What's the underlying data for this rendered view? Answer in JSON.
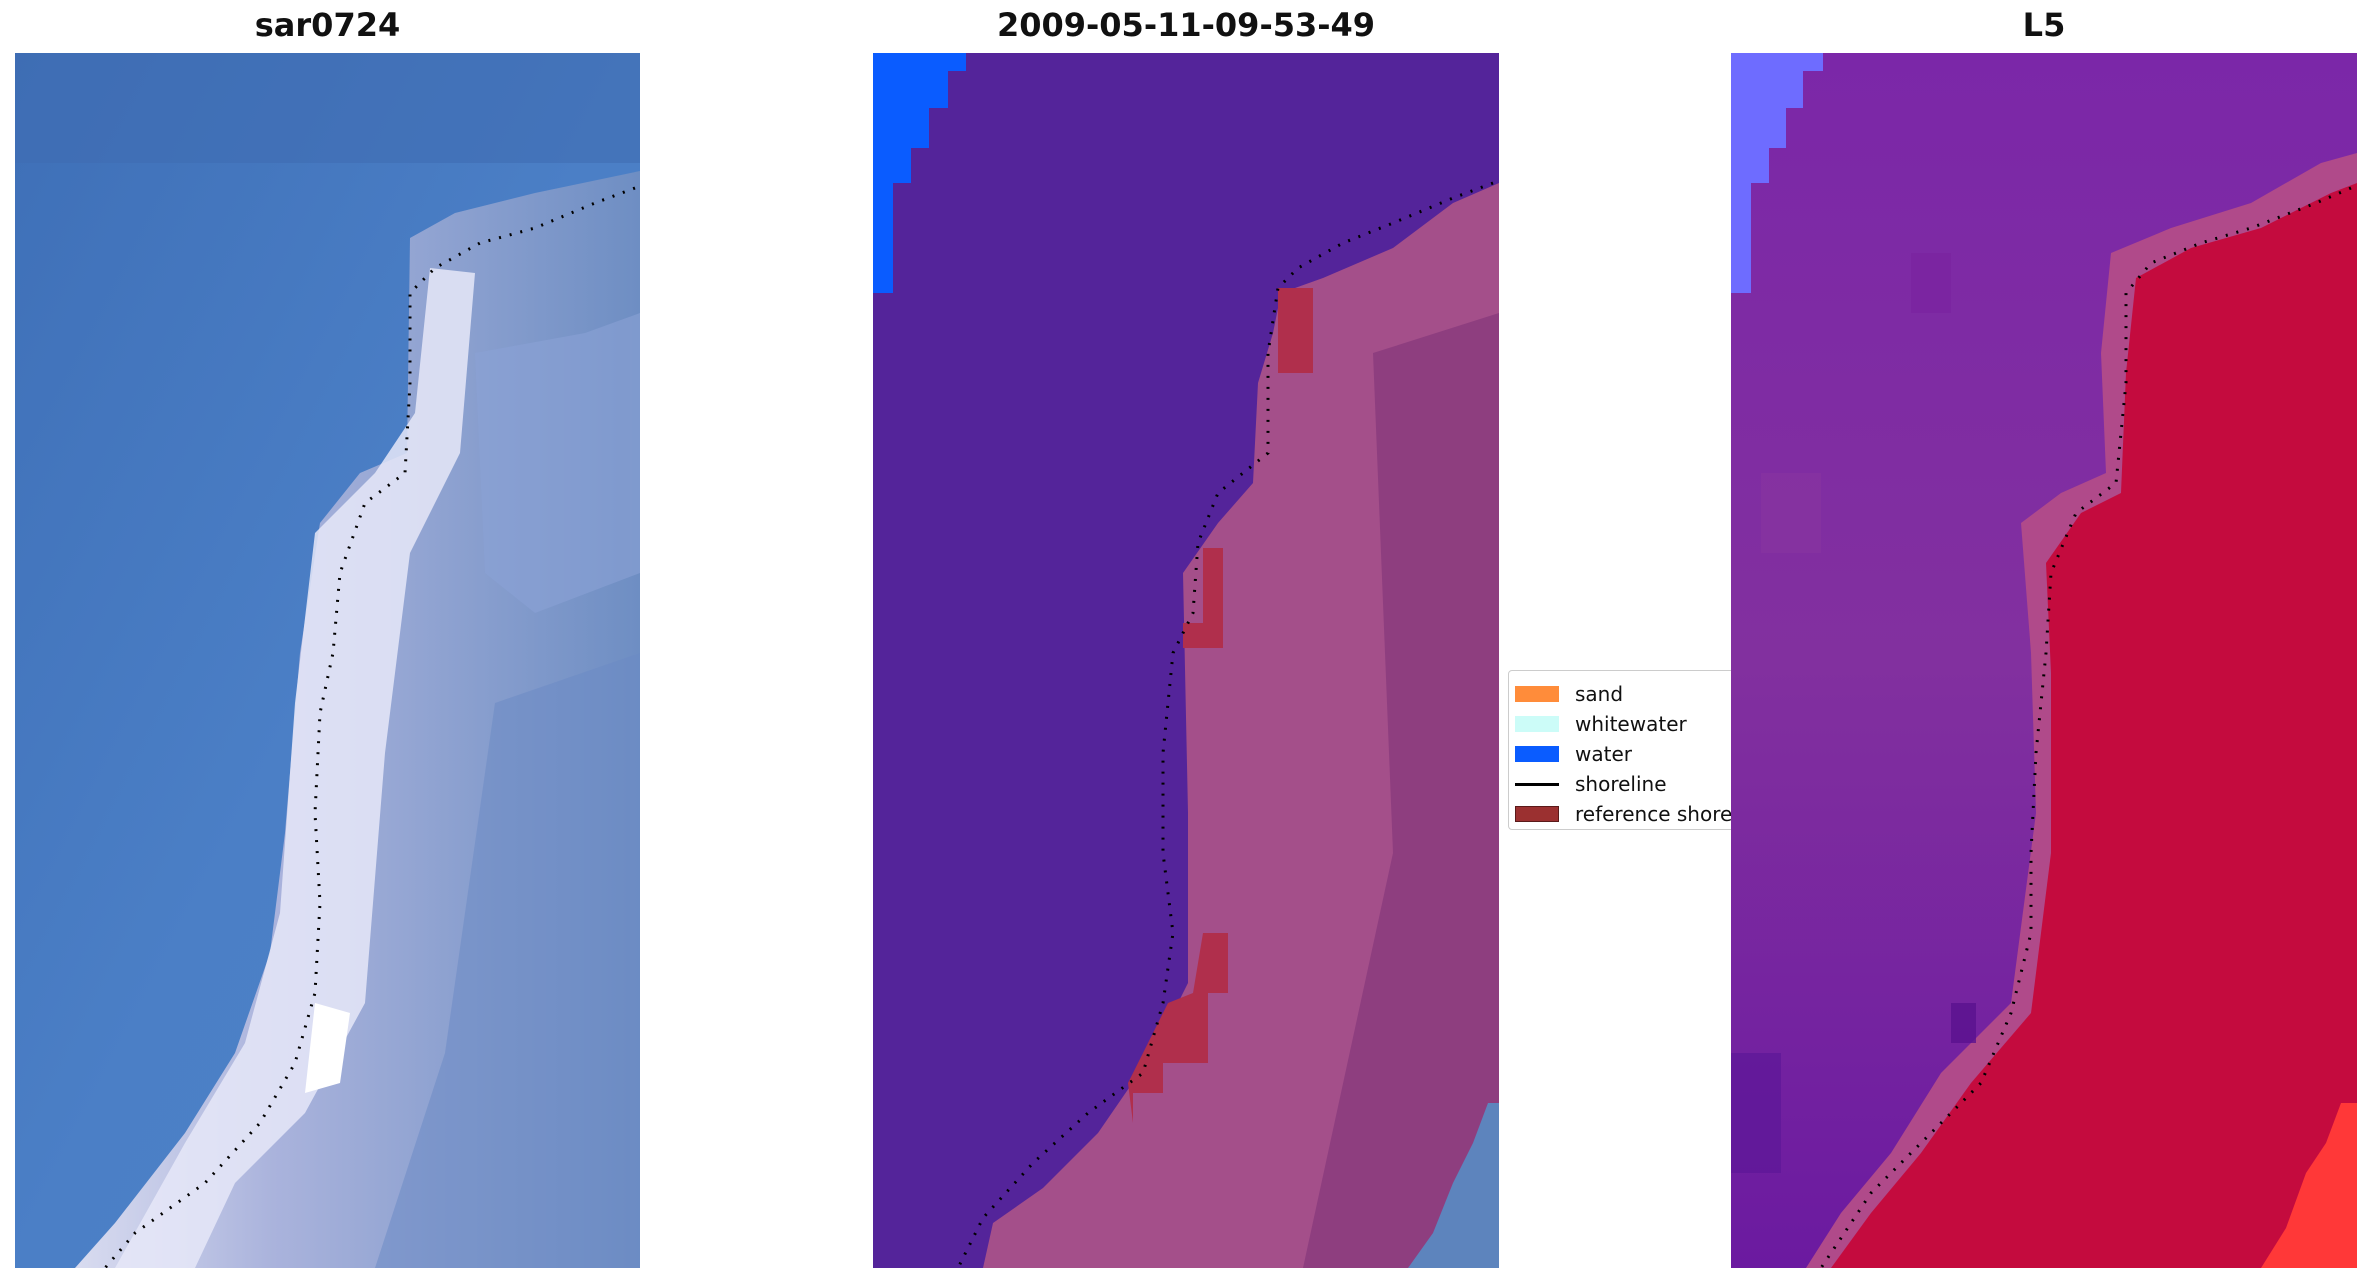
{
  "panels": [
    {
      "title": "sar0724"
    },
    {
      "title": "2009-05-11-09-53-49"
    },
    {
      "title": "L5"
    }
  ],
  "legend": {
    "items": [
      {
        "label": "sand",
        "color": "#ff8c3a",
        "kind": "patch"
      },
      {
        "label": "whitewater",
        "color": "#ccfcf8",
        "kind": "patch"
      },
      {
        "label": "water",
        "color": "#0a5cff",
        "kind": "patch"
      },
      {
        "label": "shoreline",
        "color": "#000000",
        "kind": "line"
      },
      {
        "label": "reference shoreline",
        "color": "#9b3030",
        "kind": "patch"
      }
    ]
  },
  "colors": {
    "sea_blue": "#4478bf",
    "beach_white": "#dde0f2",
    "classified_water": "#54249a",
    "classified_land": "#a44f8a",
    "index_low": "#7d2aa4",
    "index_high": "#c40b3e"
  }
}
